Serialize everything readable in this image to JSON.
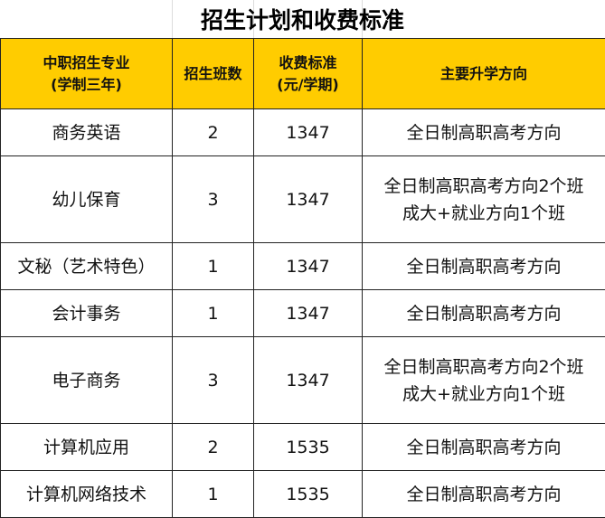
{
  "title": "招生计划和收费标准",
  "headers": {
    "major_line1": "中职招生专业",
    "major_line2": "(学制三年)",
    "classes": "招生班数",
    "fee_line1": "收费标准",
    "fee_line2": "(元/学期)",
    "direction": "主要升学方向"
  },
  "rows": [
    {
      "major": "商务英语",
      "classes": "2",
      "fee": "1347",
      "dir1": "全日制高职高考方向",
      "dir2": ""
    },
    {
      "major": "幼儿保育",
      "classes": "3",
      "fee": "1347",
      "dir1": "全日制高职高考方向2个班",
      "dir2": "成大+就业方向1个班"
    },
    {
      "major": "文秘（艺术特色）",
      "classes": "1",
      "fee": "1347",
      "dir1": "全日制高职高考方向",
      "dir2": ""
    },
    {
      "major": "会计事务",
      "classes": "1",
      "fee": "1347",
      "dir1": "全日制高职高考方向",
      "dir2": ""
    },
    {
      "major": "电子商务",
      "classes": "3",
      "fee": "1347",
      "dir1": "全日制高职高考方向2个班",
      "dir2": "成大+就业方向1个班"
    },
    {
      "major": "计算机应用",
      "classes": "2",
      "fee": "1535",
      "dir1": "全日制高职高考方向",
      "dir2": ""
    },
    {
      "major": "计算机网络技术",
      "classes": "1",
      "fee": "1535",
      "dir1": "全日制高职高考方向",
      "dir2": ""
    }
  ],
  "colors": {
    "header_bg": "#ffcc00"
  }
}
